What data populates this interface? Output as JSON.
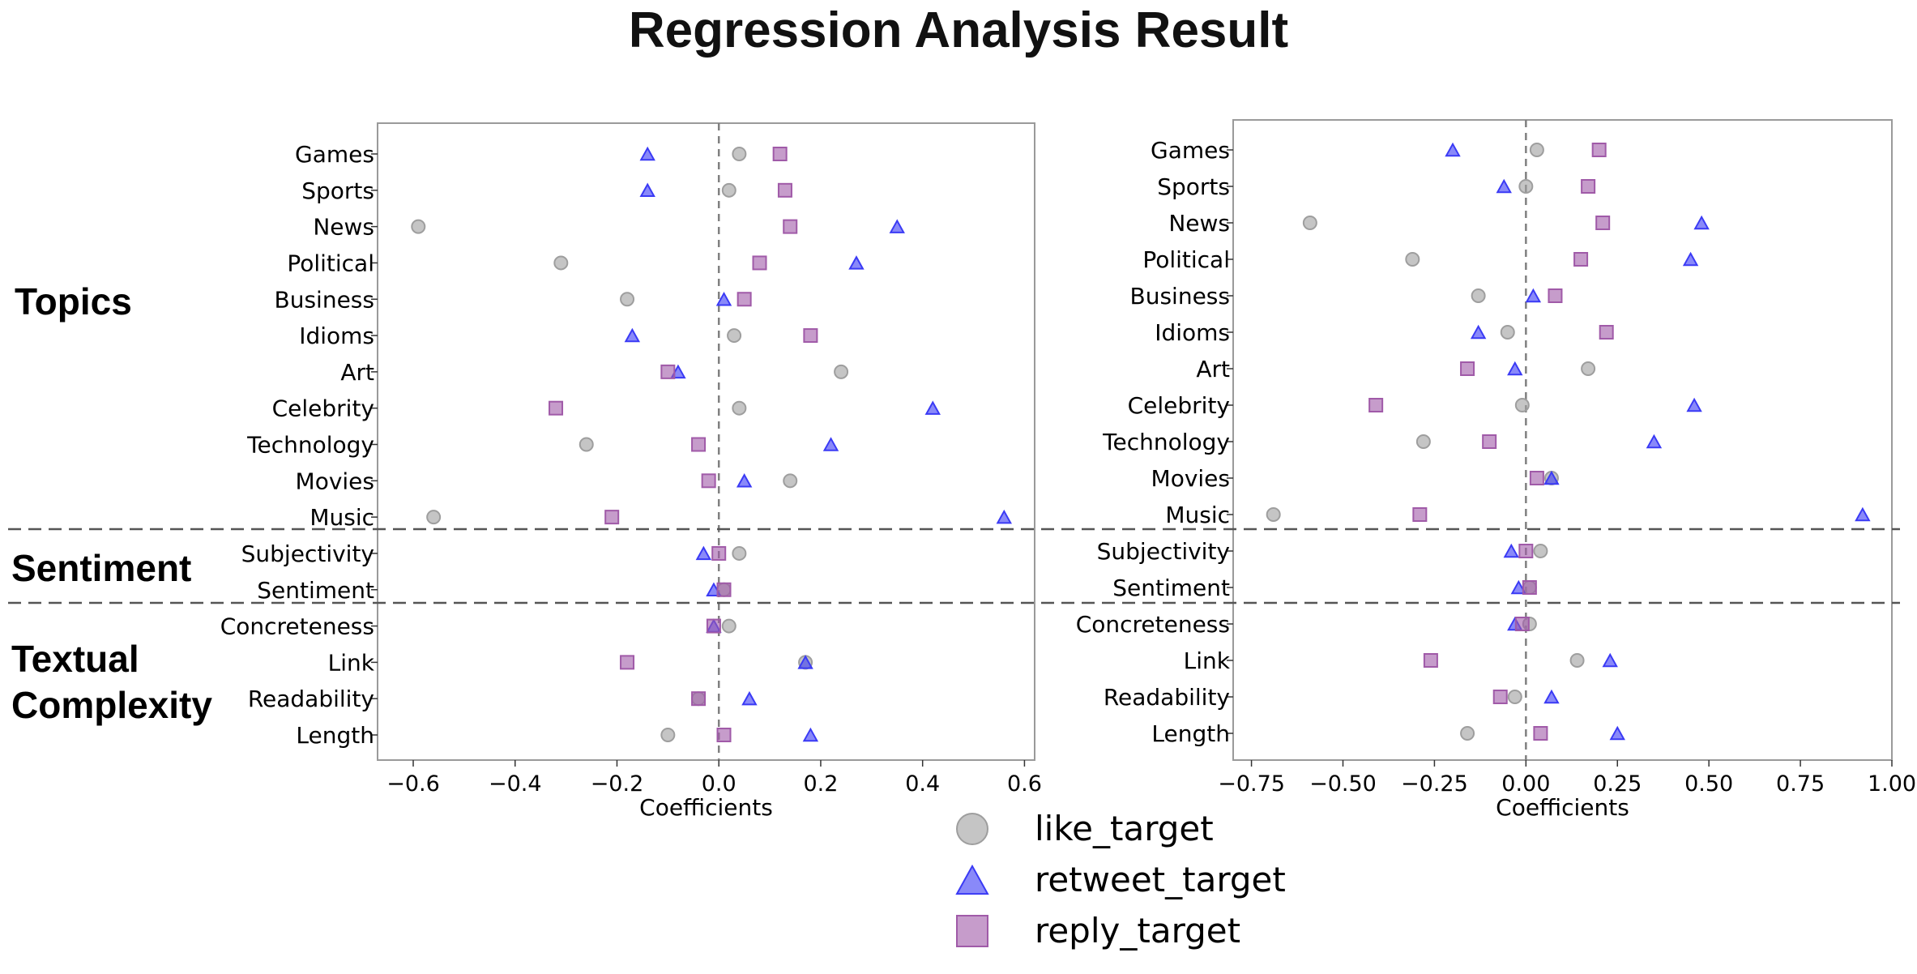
{
  "title": "Regression Analysis Result",
  "groups": [
    {
      "label_lines": [
        "Topics"
      ]
    },
    {
      "label_lines": [
        "Sentiment"
      ]
    },
    {
      "label_lines": [
        "Textual",
        "Complexity"
      ]
    }
  ],
  "legend": [
    {
      "name": "like_target",
      "marker": "circle",
      "color": "#9e9e9e"
    },
    {
      "name": "retweet_target",
      "marker": "triangle",
      "color": "#3a3af5"
    },
    {
      "name": "reply_target",
      "marker": "square",
      "color": "#a05aa8"
    }
  ],
  "chart_data": [
    {
      "type": "scatter",
      "xlabel": "Coefficients",
      "xlim": [
        -0.67,
        0.62
      ],
      "xticks": [
        -0.6,
        -0.4,
        -0.2,
        0.0,
        0.2,
        0.4,
        0.6
      ],
      "xtick_labels": [
        "−0.6",
        "−0.4",
        "−0.2",
        "0.0",
        "0.2",
        "0.4",
        "0.6"
      ],
      "categories": [
        "Games",
        "Sports",
        "News",
        "Political",
        "Business",
        "Idioms",
        "Art",
        "Celebrity",
        "Technology",
        "Movies",
        "Music",
        "Subjectivity",
        "Sentiment",
        "Concreteness",
        "Link",
        "Readability",
        "Length"
      ],
      "series": [
        {
          "name": "like_target",
          "values": [
            0.04,
            0.02,
            -0.59,
            -0.31,
            -0.18,
            0.03,
            0.24,
            0.04,
            -0.26,
            0.14,
            -0.56,
            0.04,
            0.01,
            0.02,
            0.17,
            -0.04,
            -0.1
          ]
        },
        {
          "name": "retweet_target",
          "values": [
            -0.14,
            -0.14,
            0.35,
            0.27,
            0.01,
            -0.17,
            -0.08,
            0.42,
            0.22,
            0.05,
            0.56,
            -0.03,
            -0.01,
            -0.01,
            0.17,
            0.06,
            0.18
          ]
        },
        {
          "name": "reply_target",
          "values": [
            0.12,
            0.13,
            0.14,
            0.08,
            0.05,
            0.18,
            -0.1,
            -0.32,
            -0.04,
            -0.02,
            -0.21,
            0.0,
            0.01,
            -0.01,
            -0.18,
            -0.04,
            0.01
          ]
        }
      ]
    },
    {
      "type": "scatter",
      "xlabel": "Coefficients",
      "xlim": [
        -0.8,
        1.0
      ],
      "xticks": [
        -0.75,
        -0.5,
        -0.25,
        0.0,
        0.25,
        0.5,
        0.75,
        1.0
      ],
      "xtick_labels": [
        "−0.75",
        "−0.50",
        "−0.25",
        "0.00",
        "0.25",
        "0.50",
        "0.75",
        "1.00"
      ],
      "categories": [
        "Games",
        "Sports",
        "News",
        "Political",
        "Business",
        "Idioms",
        "Art",
        "Celebrity",
        "Technology",
        "Movies",
        "Music",
        "Subjectivity",
        "Sentiment",
        "Concreteness",
        "Link",
        "Readability",
        "Length"
      ],
      "series": [
        {
          "name": "like_target",
          "values": [
            0.03,
            0.0,
            -0.59,
            -0.31,
            -0.13,
            -0.05,
            0.17,
            -0.01,
            -0.28,
            0.07,
            -0.69,
            0.04,
            0.01,
            0.01,
            0.14,
            -0.03,
            -0.16
          ]
        },
        {
          "name": "retweet_target",
          "values": [
            -0.2,
            -0.06,
            0.48,
            0.45,
            0.02,
            -0.13,
            -0.03,
            0.46,
            0.35,
            0.07,
            0.92,
            -0.04,
            -0.02,
            -0.03,
            0.23,
            0.07,
            0.25
          ]
        },
        {
          "name": "reply_target",
          "values": [
            0.2,
            0.17,
            0.21,
            0.15,
            0.08,
            0.22,
            -0.16,
            -0.41,
            -0.1,
            0.03,
            -0.29,
            0.0,
            0.01,
            -0.01,
            -0.26,
            -0.07,
            0.04
          ]
        }
      ]
    }
  ]
}
